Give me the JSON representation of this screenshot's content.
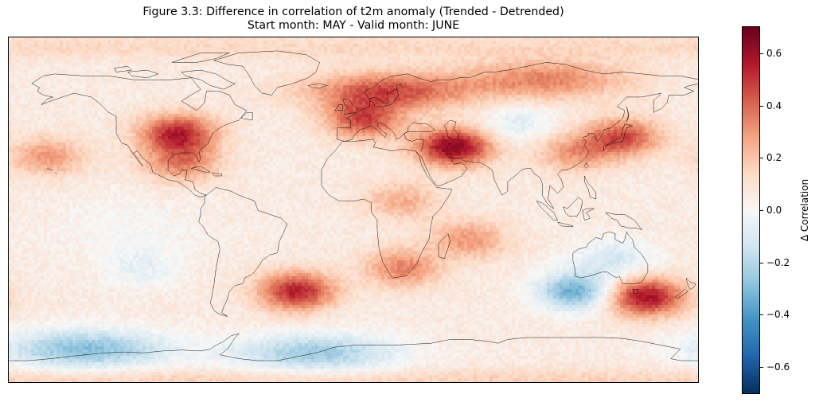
{
  "figure": {
    "title_line1": "Figure 3.3: Difference in correlation of t2m anomaly (Trended - Detrended)",
    "title_line2": "Start month: MAY - Valid month: JUNE"
  },
  "colorbar": {
    "label": "Δ Correlation",
    "colormap": "RdBu_r",
    "vmin": -0.7,
    "vmax": 0.7,
    "ticks": [
      0.6,
      0.4,
      0.2,
      0.0,
      -0.2,
      -0.4,
      -0.6
    ],
    "tick_labels": [
      "0.6",
      "0.4",
      "0.2",
      "0.0",
      "−0.2",
      "−0.4",
      "−0.6"
    ],
    "stops": [
      "#053061",
      "#2166ac",
      "#4393c3",
      "#92c5de",
      "#d1e5f0",
      "#f7f7f7",
      "#fddbc7",
      "#f4a582",
      "#d6604d",
      "#b2182b",
      "#67001f"
    ]
  },
  "chart_data": {
    "type": "heatmap",
    "projection": "PlateCarree",
    "title": "Figure 3.3: Difference in correlation of t2m anomaly (Trended - Detrended)\nStart month: MAY - Valid month: JUNE",
    "variable": "Δ Correlation",
    "lon_range": [
      -180,
      180
    ],
    "lat_range": [
      -90,
      90
    ],
    "value_range": [
      -0.7,
      0.7
    ],
    "background_value": 0.06,
    "features": [
      {
        "region": "Central North America",
        "lon": -92,
        "lat": 40,
        "value": 0.55
      },
      {
        "region": "Gulf of Mexico",
        "lon": -90,
        "lat": 25,
        "value": 0.35
      },
      {
        "region": "North Pacific subtropical band",
        "lon": -160,
        "lat": 28,
        "value": 0.3
      },
      {
        "region": "Western Europe",
        "lon": 5,
        "lat": 47,
        "value": 0.45
      },
      {
        "region": "Scandinavia",
        "lon": 18,
        "lat": 62,
        "value": 0.45
      },
      {
        "region": "Middle East / Iran",
        "lon": 52,
        "lat": 33,
        "value": 0.65
      },
      {
        "region": "Northern Siberia",
        "lon": 100,
        "lat": 68,
        "value": 0.35
      },
      {
        "region": "Japan / NW Pacific",
        "lon": 140,
        "lat": 38,
        "value": 0.45
      },
      {
        "region": "East China",
        "lon": 115,
        "lat": 30,
        "value": 0.3
      },
      {
        "region": "South Atlantic",
        "lon": -30,
        "lat": -42,
        "value": 0.55
      },
      {
        "region": "South of Africa",
        "lon": 25,
        "lat": -30,
        "value": 0.35
      },
      {
        "region": "Southwest of New Zealand / Tasman Sea",
        "lon": 152,
        "lat": -45,
        "value": 0.6
      },
      {
        "region": "South Indian Ocean",
        "lon": 60,
        "lat": -15,
        "value": 0.3
      },
      {
        "region": "Central Africa",
        "lon": 25,
        "lat": 5,
        "value": 0.25
      },
      {
        "region": "Southern Ocean south of Australia",
        "lon": 115,
        "lat": -42,
        "value": -0.35
      },
      {
        "region": "Australia interior",
        "lon": 135,
        "lat": -25,
        "value": -0.12
      },
      {
        "region": "Antarctic coast (Ross/Weddell)",
        "lon": -140,
        "lat": -72,
        "value": -0.3
      },
      {
        "region": "Antarctic coast (Atlantic sector)",
        "lon": -20,
        "lat": -74,
        "value": -0.25
      },
      {
        "region": "Central Asia",
        "lon": 85,
        "lat": 45,
        "value": -0.08
      },
      {
        "region": "Southeast Pacific",
        "lon": -110,
        "lat": -30,
        "value": -0.05
      }
    ]
  }
}
